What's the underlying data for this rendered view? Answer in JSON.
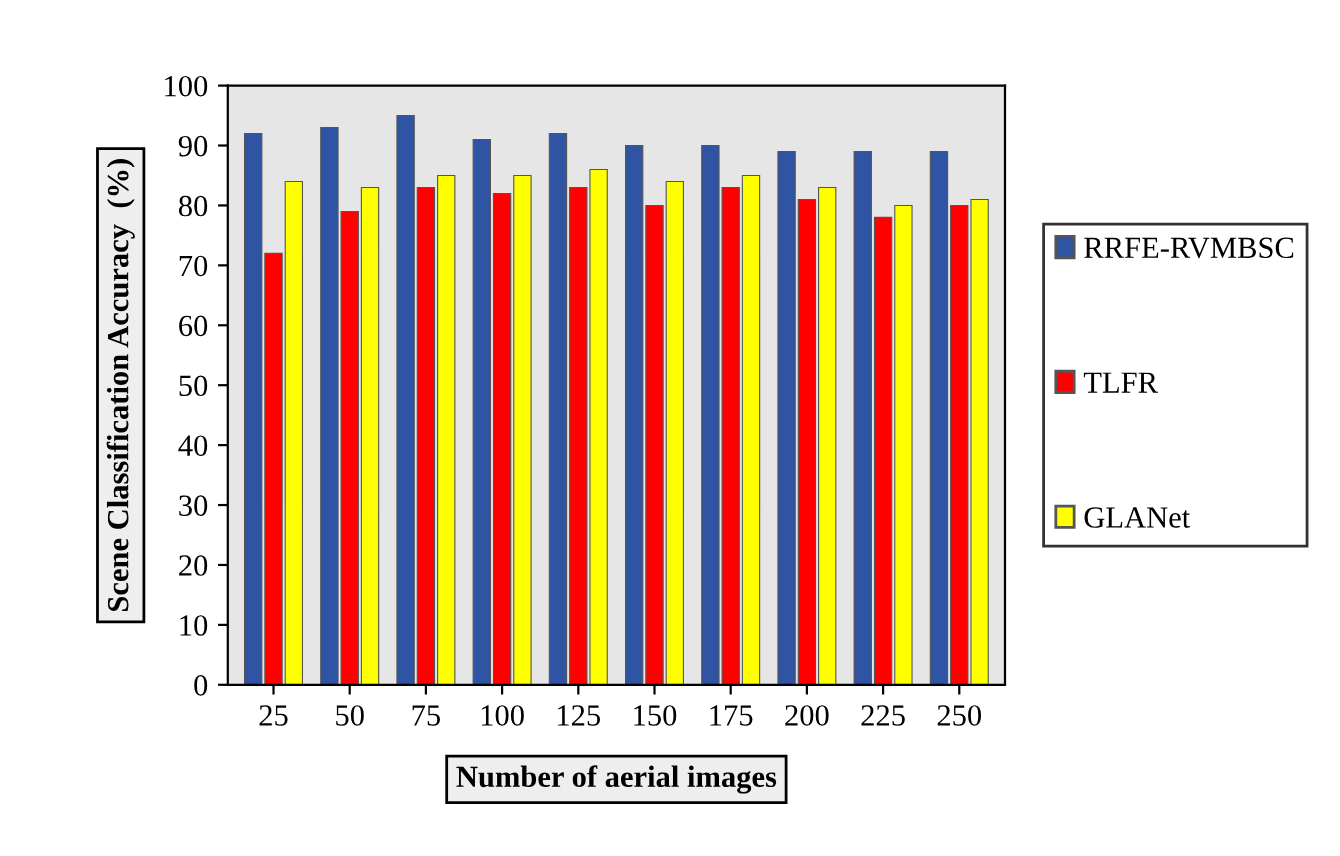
{
  "chart_data": {
    "type": "bar",
    "xlabel": "Number of aerial images",
    "ylabel": "Scene Classification Accuracy  (%)",
    "categories": [
      "25",
      "50",
      "75",
      "100",
      "125",
      "150",
      "175",
      "200",
      "225",
      "250"
    ],
    "series": [
      {
        "name": "RRFE-RVMBSC",
        "color": "#2e54a3",
        "values": [
          92,
          93,
          95,
          91,
          92,
          90,
          90,
          89,
          89,
          89
        ]
      },
      {
        "name": "TLFR",
        "color": "#ff0000",
        "values": [
          72,
          79,
          83,
          82,
          83,
          80,
          83,
          81,
          78,
          80
        ]
      },
      {
        "name": "GLANet",
        "color": "#ffff00",
        "values": [
          84,
          83,
          85,
          85,
          86,
          84,
          85,
          83,
          80,
          81
        ]
      }
    ],
    "ylim": [
      0,
      100
    ],
    "yticks": [
      0,
      10,
      20,
      30,
      40,
      50,
      60,
      70,
      80,
      90,
      100
    ],
    "grid": false,
    "legend": "right"
  }
}
